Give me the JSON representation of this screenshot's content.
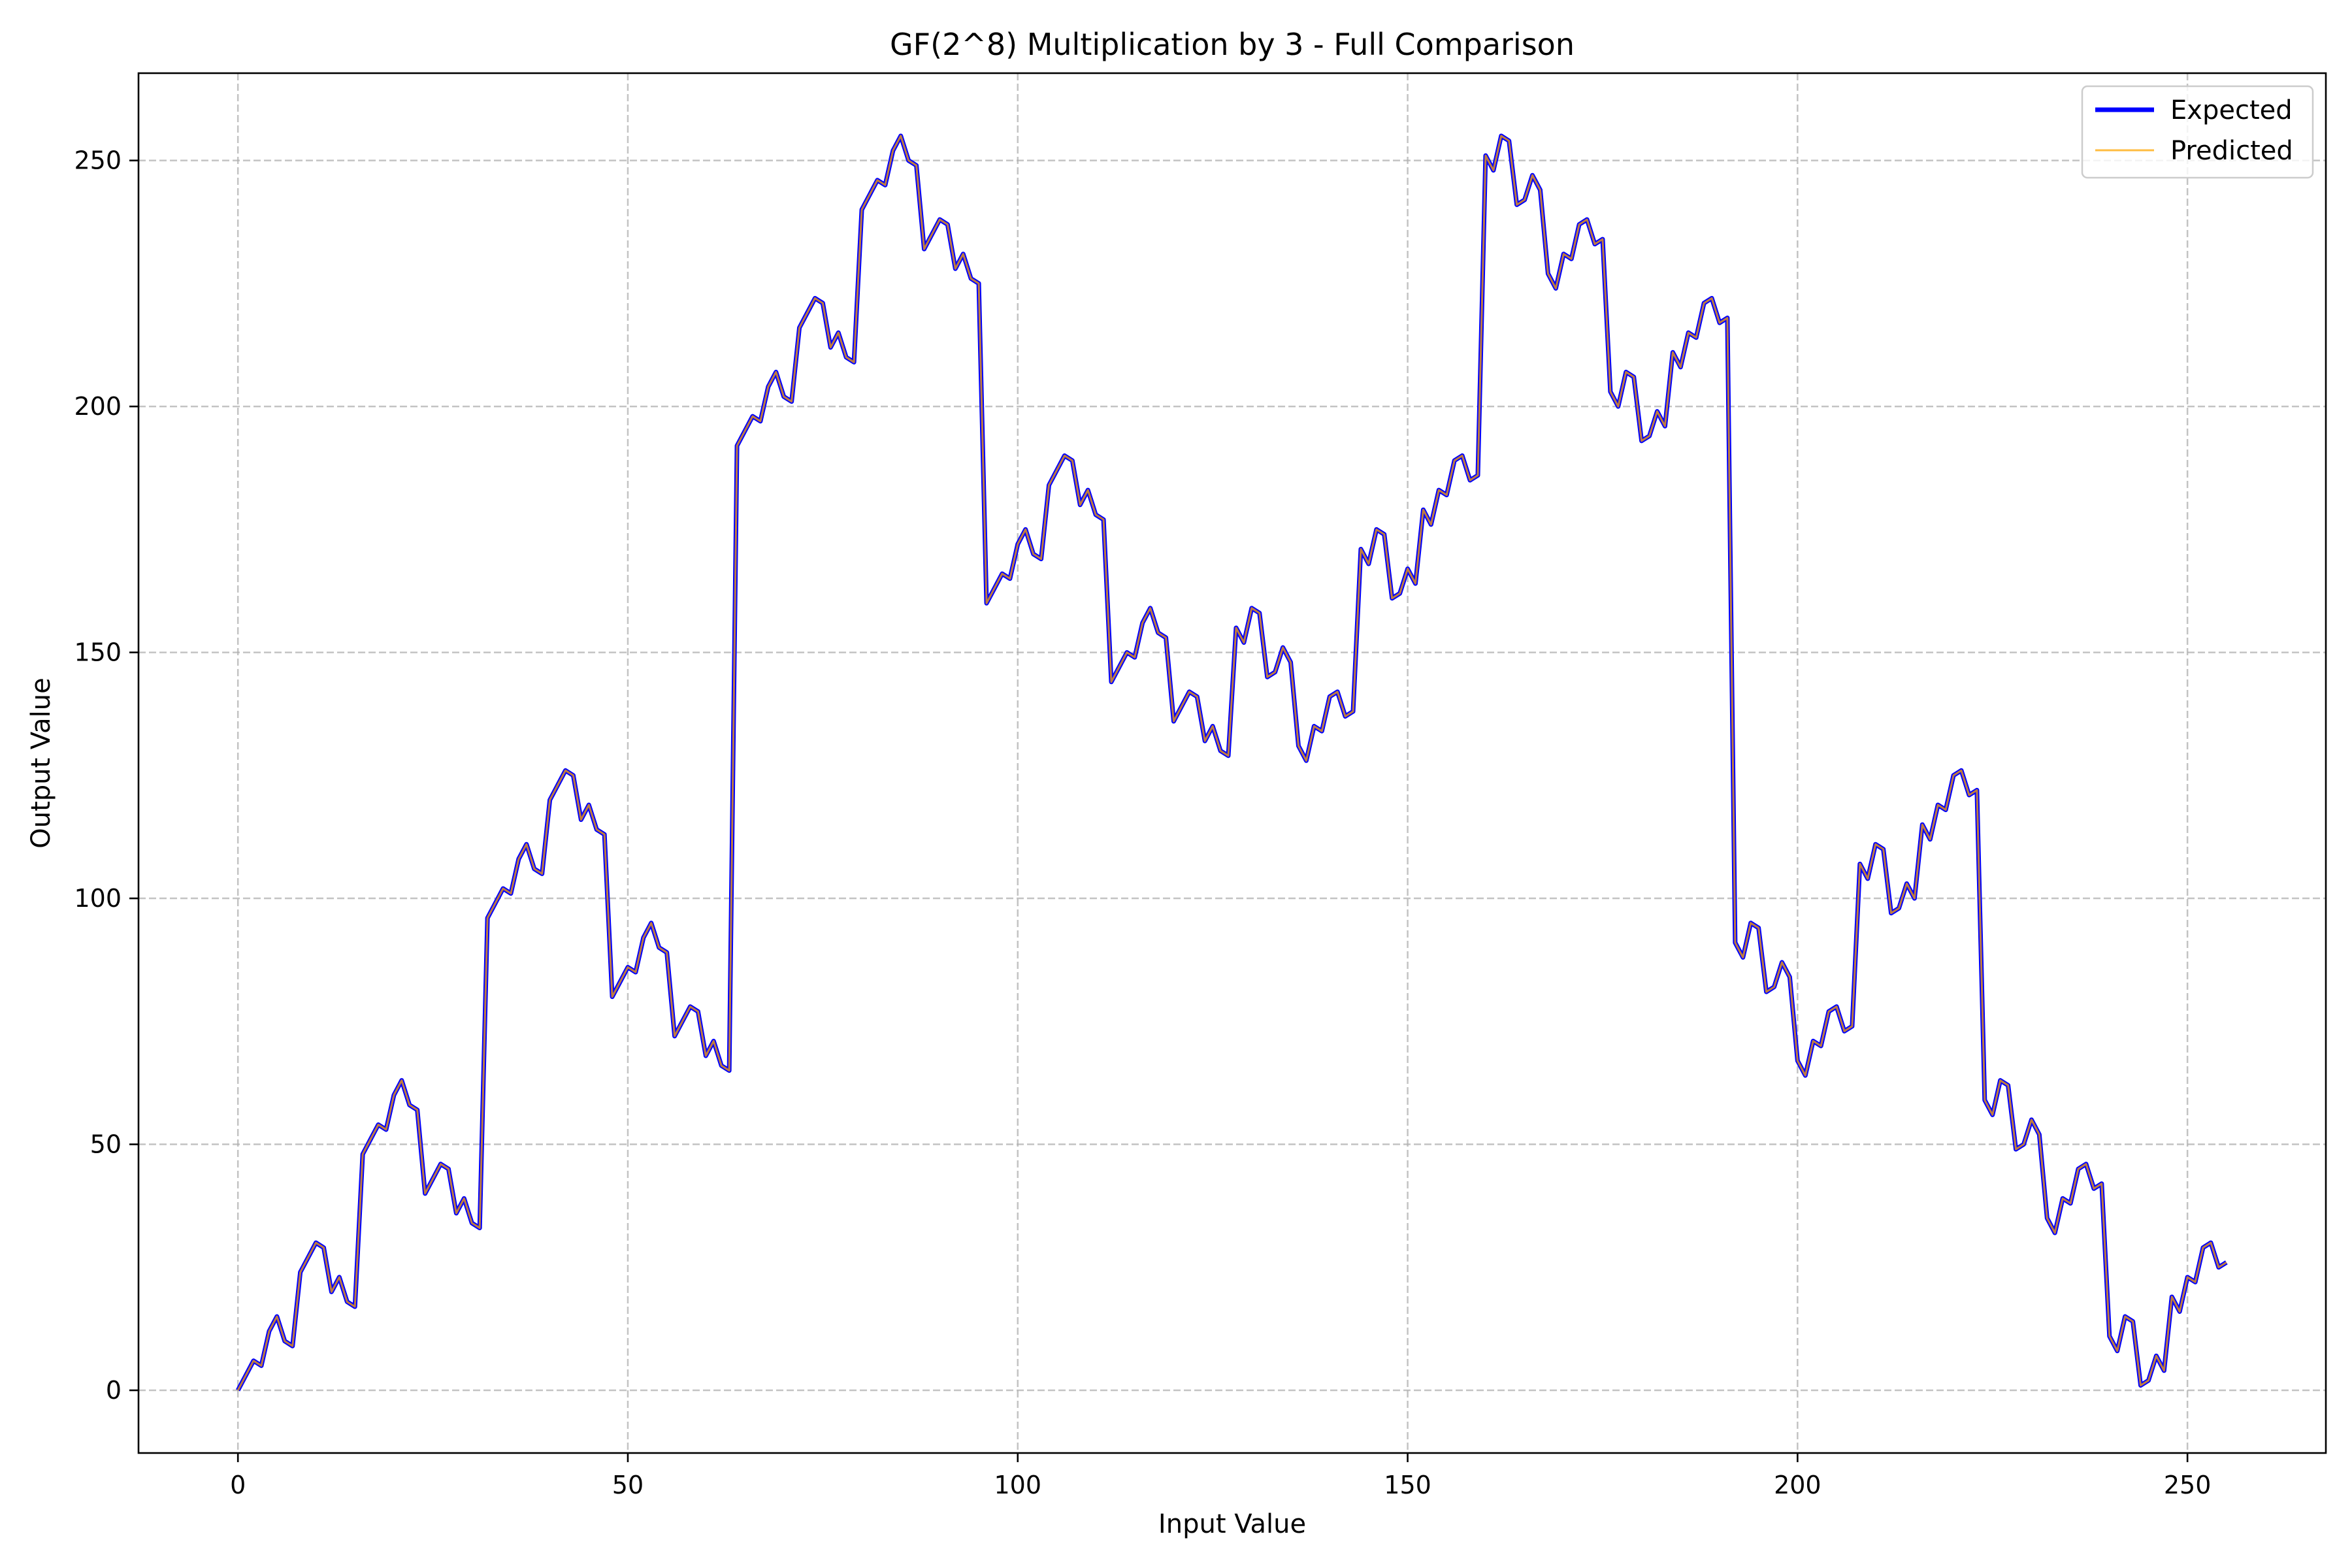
{
  "chart_data": {
    "type": "line",
    "title": "GF(2^8) Multiplication by 3 - Full Comparison",
    "xlabel": "Input Value",
    "ylabel": "Output Value",
    "xlim": [
      -12.75,
      267.75
    ],
    "ylim": [
      -12.75,
      267.75
    ],
    "xticks": [
      0,
      50,
      100,
      150,
      200,
      250
    ],
    "yticks": [
      0,
      50,
      100,
      150,
      200,
      250
    ],
    "grid": true,
    "legend_position": "top-right",
    "x": [
      0,
      1,
      2,
      3,
      4,
      5,
      6,
      7,
      8,
      9,
      10,
      11,
      12,
      13,
      14,
      15,
      16,
      17,
      18,
      19,
      20,
      21,
      22,
      23,
      24,
      25,
      26,
      27,
      28,
      29,
      30,
      31,
      32,
      33,
      34,
      35,
      36,
      37,
      38,
      39,
      40,
      41,
      42,
      43,
      44,
      45,
      46,
      47,
      48,
      49,
      50,
      51,
      52,
      53,
      54,
      55,
      56,
      57,
      58,
      59,
      60,
      61,
      62,
      63,
      64,
      65,
      66,
      67,
      68,
      69,
      70,
      71,
      72,
      73,
      74,
      75,
      76,
      77,
      78,
      79,
      80,
      81,
      82,
      83,
      84,
      85,
      86,
      87,
      88,
      89,
      90,
      91,
      92,
      93,
      94,
      95,
      96,
      97,
      98,
      99,
      100,
      101,
      102,
      103,
      104,
      105,
      106,
      107,
      108,
      109,
      110,
      111,
      112,
      113,
      114,
      115,
      116,
      117,
      118,
      119,
      120,
      121,
      122,
      123,
      124,
      125,
      126,
      127,
      128,
      129,
      130,
      131,
      132,
      133,
      134,
      135,
      136,
      137,
      138,
      139,
      140,
      141,
      142,
      143,
      144,
      145,
      146,
      147,
      148,
      149,
      150,
      151,
      152,
      153,
      154,
      155,
      156,
      157,
      158,
      159,
      160,
      161,
      162,
      163,
      164,
      165,
      166,
      167,
      168,
      169,
      170,
      171,
      172,
      173,
      174,
      175,
      176,
      177,
      178,
      179,
      180,
      181,
      182,
      183,
      184,
      185,
      186,
      187,
      188,
      189,
      190,
      191,
      192,
      193,
      194,
      195,
      196,
      197,
      198,
      199,
      200,
      201,
      202,
      203,
      204,
      205,
      206,
      207,
      208,
      209,
      210,
      211,
      212,
      213,
      214,
      215,
      216,
      217,
      218,
      219,
      220,
      221,
      222,
      223,
      224,
      225,
      226,
      227,
      228,
      229,
      230,
      231,
      232,
      233,
      234,
      235,
      236,
      237,
      238,
      239,
      240,
      241,
      242,
      243,
      244,
      245,
      246,
      247,
      248,
      249,
      250,
      251,
      252,
      253,
      254,
      255
    ],
    "series": [
      {
        "name": "Expected",
        "color": "#0000ff",
        "values": [
          0,
          3,
          6,
          5,
          12,
          15,
          10,
          9,
          24,
          27,
          30,
          29,
          20,
          23,
          18,
          17,
          48,
          51,
          54,
          53,
          60,
          63,
          58,
          57,
          40,
          43,
          46,
          45,
          36,
          39,
          34,
          33,
          96,
          99,
          102,
          101,
          108,
          111,
          106,
          105,
          120,
          123,
          126,
          125,
          116,
          119,
          114,
          113,
          80,
          83,
          86,
          85,
          92,
          95,
          90,
          89,
          72,
          75,
          78,
          77,
          68,
          71,
          66,
          65,
          192,
          195,
          198,
          197,
          204,
          207,
          202,
          201,
          216,
          219,
          222,
          221,
          212,
          215,
          210,
          209,
          240,
          243,
          246,
          245,
          252,
          255,
          250,
          249,
          232,
          235,
          238,
          237,
          228,
          231,
          226,
          225,
          160,
          163,
          166,
          165,
          172,
          175,
          170,
          169,
          184,
          187,
          190,
          189,
          180,
          183,
          178,
          177,
          144,
          147,
          150,
          149,
          156,
          159,
          154,
          153,
          136,
          139,
          142,
          141,
          132,
          135,
          130,
          129,
          155,
          152,
          159,
          158,
          145,
          146,
          151,
          148,
          131,
          128,
          135,
          134,
          141,
          142,
          137,
          138,
          171,
          168,
          175,
          174,
          161,
          162,
          167,
          164,
          179,
          176,
          183,
          182,
          189,
          190,
          185,
          186,
          251,
          248,
          255,
          254,
          241,
          242,
          247,
          244,
          227,
          224,
          231,
          230,
          237,
          238,
          233,
          234,
          203,
          200,
          207,
          206,
          193,
          194,
          199,
          196,
          211,
          208,
          215,
          214,
          221,
          222,
          217,
          218,
          91,
          88,
          95,
          94,
          81,
          82,
          87,
          84,
          67,
          64,
          71,
          70,
          77,
          78,
          73,
          74,
          107,
          104,
          111,
          110,
          97,
          98,
          103,
          100,
          115,
          112,
          119,
          118,
          125,
          126,
          121,
          122,
          59,
          56,
          63,
          62,
          49,
          50,
          55,
          52,
          35,
          32,
          39,
          38,
          45,
          46,
          41,
          42,
          11,
          8,
          15,
          14,
          1,
          2,
          7,
          4,
          19,
          16,
          23,
          22,
          29,
          30,
          25,
          26
        ]
      },
      {
        "name": "Predicted",
        "color": "#ffa500",
        "values": [
          0,
          3,
          6,
          5,
          12,
          15,
          10,
          9,
          24,
          27,
          30,
          29,
          20,
          23,
          18,
          17,
          48,
          51,
          54,
          53,
          60,
          63,
          58,
          57,
          40,
          43,
          46,
          45,
          36,
          39,
          34,
          33,
          96,
          99,
          102,
          101,
          108,
          111,
          106,
          105,
          120,
          123,
          126,
          125,
          116,
          119,
          114,
          113,
          80,
          83,
          86,
          85,
          92,
          95,
          90,
          89,
          72,
          75,
          78,
          77,
          68,
          71,
          66,
          65,
          192,
          195,
          198,
          197,
          204,
          207,
          202,
          201,
          216,
          219,
          222,
          221,
          212,
          215,
          210,
          209,
          240,
          243,
          246,
          245,
          252,
          255,
          250,
          249,
          232,
          235,
          238,
          237,
          228,
          231,
          226,
          225,
          160,
          163,
          166,
          165,
          172,
          175,
          170,
          169,
          184,
          187,
          190,
          189,
          180,
          183,
          178,
          177,
          144,
          147,
          150,
          149,
          156,
          159,
          154,
          153,
          136,
          139,
          142,
          141,
          132,
          135,
          130,
          129,
          155,
          152,
          159,
          158,
          145,
          146,
          151,
          148,
          131,
          128,
          135,
          134,
          141,
          142,
          137,
          138,
          171,
          168,
          175,
          174,
          161,
          162,
          167,
          164,
          179,
          176,
          183,
          182,
          189,
          190,
          185,
          186,
          251,
          248,
          255,
          254,
          241,
          242,
          247,
          244,
          227,
          224,
          231,
          230,
          237,
          238,
          233,
          234,
          203,
          200,
          207,
          206,
          193,
          194,
          199,
          196,
          211,
          208,
          215,
          214,
          221,
          222,
          217,
          218,
          91,
          88,
          95,
          94,
          81,
          82,
          87,
          84,
          67,
          64,
          71,
          70,
          77,
          78,
          73,
          74,
          107,
          104,
          111,
          110,
          97,
          98,
          103,
          100,
          115,
          112,
          119,
          118,
          125,
          126,
          121,
          122,
          59,
          56,
          63,
          62,
          49,
          50,
          55,
          52,
          35,
          32,
          39,
          38,
          45,
          46,
          41,
          42,
          11,
          8,
          15,
          14,
          1,
          2,
          7,
          4,
          19,
          16,
          23,
          22,
          29,
          30,
          25,
          26
        ]
      }
    ]
  }
}
